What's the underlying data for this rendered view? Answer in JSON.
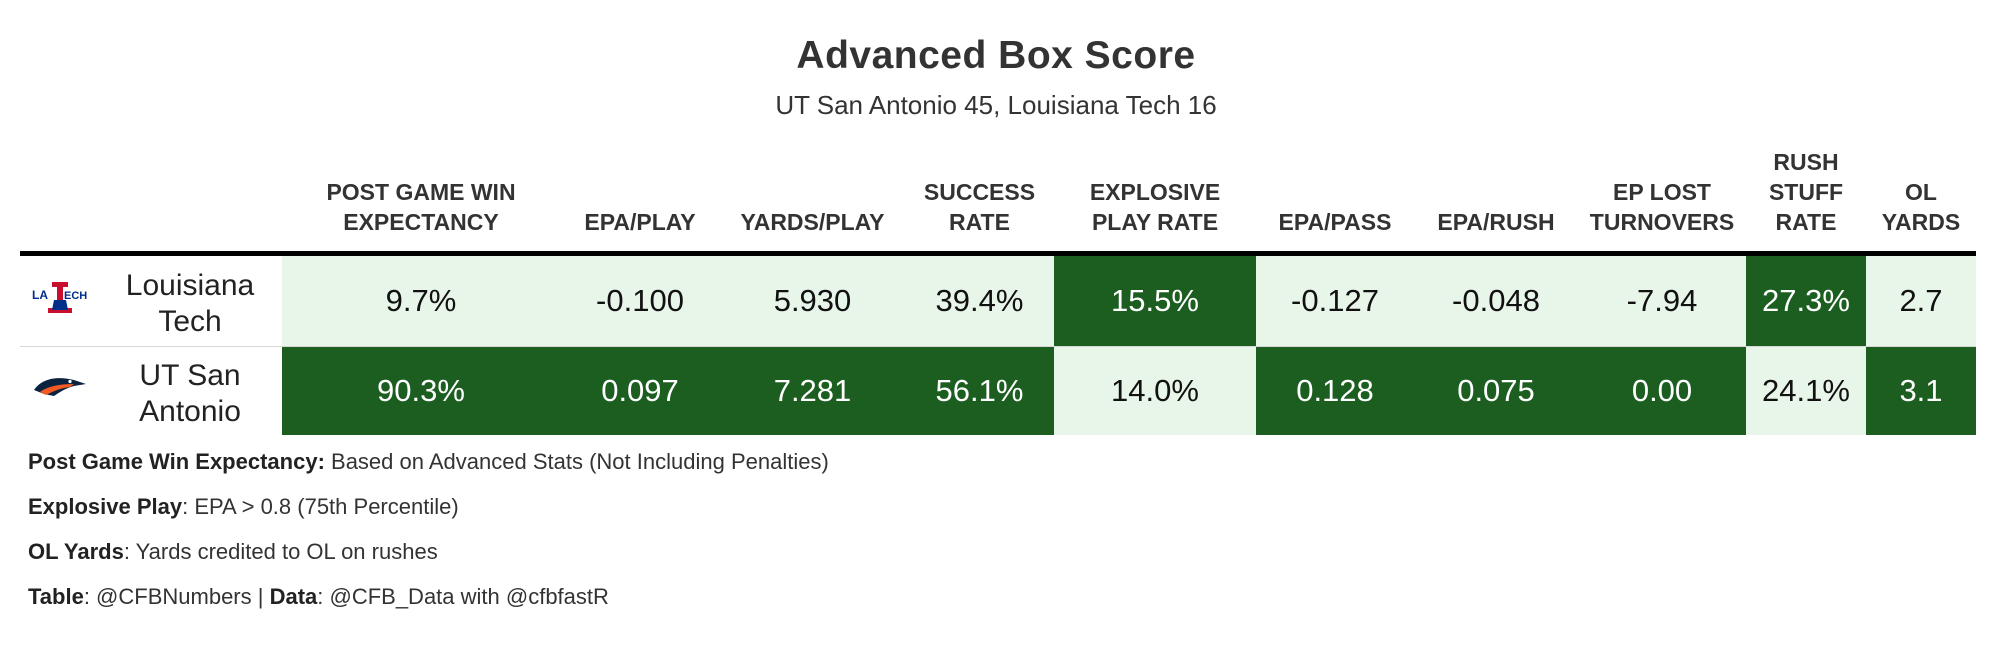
{
  "chart_data": {
    "type": "table",
    "title": "Advanced Box Score",
    "subtitle": "UT San Antonio 45, Louisiana Tech 16",
    "columns": [
      {
        "key": "wp",
        "label": "Post Game Win\nExpectancy"
      },
      {
        "key": "epa_play",
        "label": "EPA/Play"
      },
      {
        "key": "yards_play",
        "label": "Yards/Play"
      },
      {
        "key": "success",
        "label": "Success\nRate"
      },
      {
        "key": "explosive",
        "label": "Explosive\nPlay Rate"
      },
      {
        "key": "epa_pass",
        "label": "EPA/Pass"
      },
      {
        "key": "epa_rush",
        "label": "EPA/Rush"
      },
      {
        "key": "ep_lost",
        "label": "EP Lost\nTurnovers"
      },
      {
        "key": "stuff",
        "label": "Rush\nStuff\nRate"
      },
      {
        "key": "ol",
        "label": "OL\nYards"
      }
    ],
    "rows": [
      {
        "team": "Louisiana\nTech",
        "logo": "louisiana-tech-logo",
        "values": [
          "9.7%",
          "-0.100",
          "5.930",
          "39.4%",
          "15.5%",
          "-0.127",
          "-0.048",
          "-7.94",
          "27.3%",
          "2.7"
        ],
        "winner": [
          false,
          false,
          false,
          false,
          true,
          false,
          false,
          false,
          true,
          false
        ]
      },
      {
        "team": "UT San\nAntonio",
        "logo": "utsa-roadrunner-logo",
        "values": [
          "90.3%",
          "0.097",
          "7.281",
          "56.1%",
          "14.0%",
          "0.128",
          "0.075",
          "0.00",
          "24.1%",
          "3.1"
        ],
        "winner": [
          true,
          true,
          true,
          true,
          false,
          true,
          true,
          true,
          false,
          true
        ]
      }
    ],
    "colors": {
      "winner_fill": "#1b5e20",
      "loser_fill": "#e8f5e9"
    }
  },
  "notes": [
    {
      "bold": "Post Game Win Expectancy:",
      "text": " Based on Advanced Stats (Not Including Penalties)"
    },
    {
      "bold": "Explosive Play",
      "text": ": EPA > 0.8 (75th Percentile)"
    },
    {
      "bold": "OL Yards",
      "text": ": Yards credited to OL on rushes"
    }
  ],
  "credits": {
    "table_label": "Table",
    "table_value": ": @CFBNumbers | ",
    "data_label": "Data",
    "data_value": ": @CFB_Data with @cfbfastR"
  }
}
